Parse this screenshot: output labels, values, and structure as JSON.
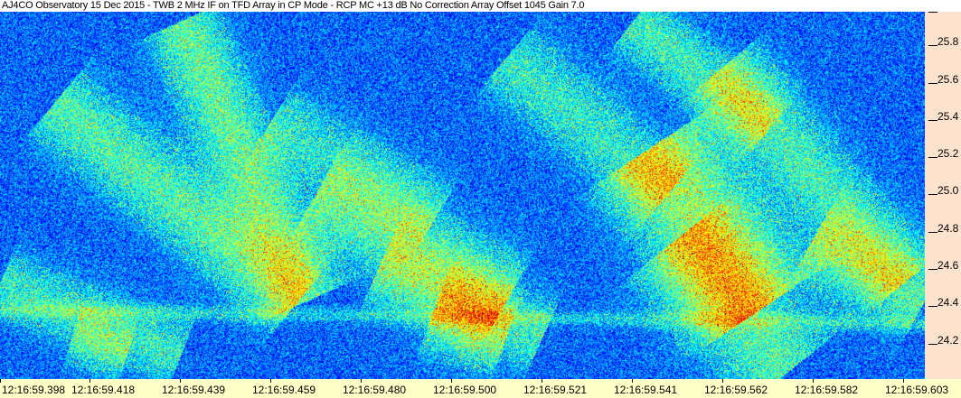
{
  "title": "AJ4CO Observatory 15 Dec 2015 - TWB 2 MHz IF on TFD Array in CP Mode - RCP  MC +13 dB  No Correction Array  Offset 1045  Gain 7.0",
  "chart_data": {
    "type": "heatmap",
    "title": "AJ4CO Observatory 15 Dec 2015 - TWB 2 MHz IF on TFD Array in CP Mode - RCP  MC +13 dB  No Correction Array  Offset 1045  Gain 7.0",
    "xlabel": "",
    "ylabel": "",
    "x_tick_labels": [
      "12:16:59.398",
      "12:16:59.418",
      "12:16:59.439",
      "12:16:59.459",
      "12:16:59.480",
      "12:16:59.500",
      "12:16:59.521",
      "12:16:59.541",
      "12:16:59.562",
      "12:16:59.582",
      "12:16:59.603"
    ],
    "y_tick_labels": [
      "25.8",
      "25.6",
      "25.4",
      "25.2",
      "25.0",
      "24.8",
      "24.6",
      "24.4",
      "24.2"
    ],
    "y_ticks": [
      25.8,
      25.6,
      25.4,
      25.2,
      25.0,
      24.8,
      24.6,
      24.4,
      24.2
    ],
    "ylim": [
      24.01,
      25.98
    ],
    "y_axis_side": "right",
    "colormap": "jet",
    "background_color": "#0a2a9e",
    "grid": false
  },
  "colors": {
    "y_axis_bg": "#fde3cd",
    "x_axis_bg": "#ffffc8"
  }
}
